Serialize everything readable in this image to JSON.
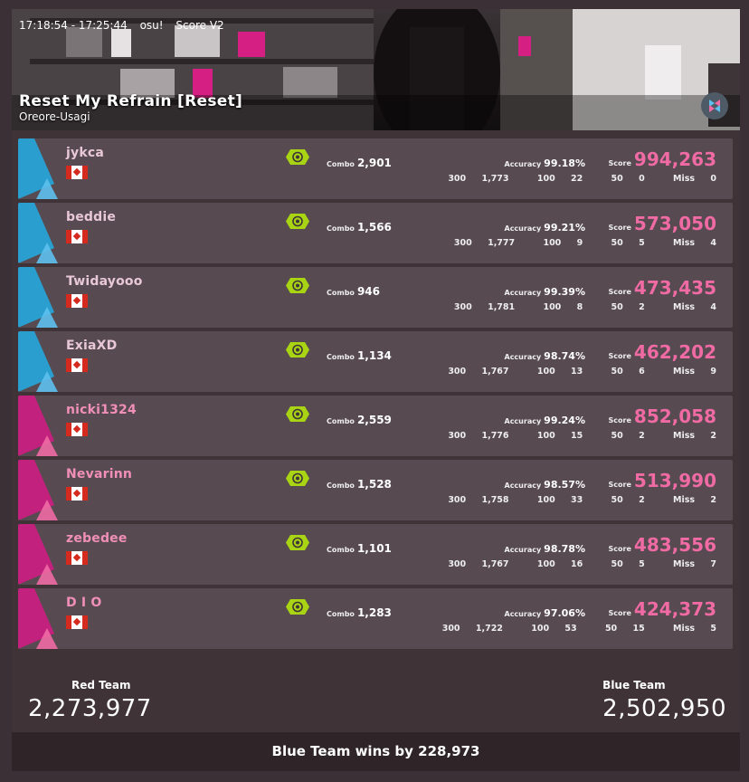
{
  "header": {
    "time_range": "17:18:54 - 17:25:44",
    "mode": "osu!",
    "scoring": "Score V2",
    "title": "Reset My Refrain [Reset]",
    "artist": "Oreore-Usagi"
  },
  "labels": {
    "combo": "Combo",
    "accuracy": "Accuracy",
    "score": "Score",
    "h300": "300",
    "h100": "100",
    "h50": "50",
    "miss": "Miss"
  },
  "colors": {
    "blue_team": "#2a9fcf",
    "red_team": "#c2217d",
    "score_pink": "#f06aa4",
    "mod_green": "#a8d414"
  },
  "players": [
    {
      "team": "blue",
      "name": "jykca",
      "flag": "canada-flag",
      "combo": "2,901",
      "accuracy": "99.18%",
      "score": "994,263",
      "h300": "1,773",
      "h100": "22",
      "h50": "0",
      "miss": "0"
    },
    {
      "team": "blue",
      "name": "beddie",
      "flag": "canada-flag",
      "combo": "1,566",
      "accuracy": "99.21%",
      "score": "573,050",
      "h300": "1,777",
      "h100": "9",
      "h50": "5",
      "miss": "4"
    },
    {
      "team": "blue",
      "name": "Twidayooo",
      "flag": "canada-flag",
      "combo": "946",
      "accuracy": "99.39%",
      "score": "473,435",
      "h300": "1,781",
      "h100": "8",
      "h50": "2",
      "miss": "4"
    },
    {
      "team": "blue",
      "name": "ExiaXD",
      "flag": "canada-flag",
      "combo": "1,134",
      "accuracy": "98.74%",
      "score": "462,202",
      "h300": "1,767",
      "h100": "13",
      "h50": "6",
      "miss": "9"
    },
    {
      "team": "red",
      "name": "nicki1324",
      "flag": "canada-flag",
      "combo": "2,559",
      "accuracy": "99.24%",
      "score": "852,058",
      "h300": "1,776",
      "h100": "15",
      "h50": "2",
      "miss": "2"
    },
    {
      "team": "red",
      "name": "Nevarinn",
      "flag": "canada-flag",
      "combo": "1,528",
      "accuracy": "98.57%",
      "score": "513,990",
      "h300": "1,758",
      "h100": "33",
      "h50": "2",
      "miss": "2"
    },
    {
      "team": "red",
      "name": "zebedee",
      "flag": "canada-flag",
      "combo": "1,101",
      "accuracy": "98.78%",
      "score": "483,556",
      "h300": "1,767",
      "h100": "16",
      "h50": "5",
      "miss": "7"
    },
    {
      "team": "red",
      "name": "D I O",
      "flag": "canada-flag",
      "combo": "1,283",
      "accuracy": "97.06%",
      "score": "424,373",
      "h300": "1,722",
      "h100": "53",
      "h50": "15",
      "miss": "5"
    }
  ],
  "teams": {
    "red": {
      "label": "Red Team",
      "total": "2,273,977"
    },
    "blue": {
      "label": "Blue Team",
      "total": "2,502,950"
    }
  },
  "result": "Blue Team wins by 228,973"
}
